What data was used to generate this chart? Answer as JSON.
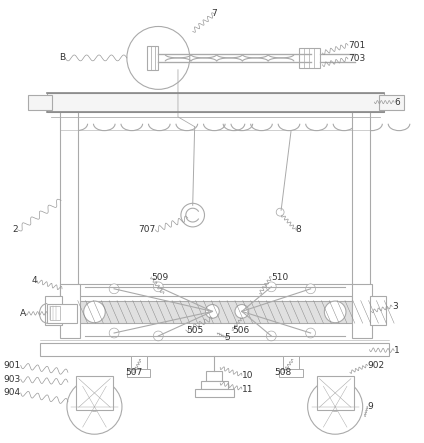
{
  "bg_color": "#ffffff",
  "lc": "#aaaaaa",
  "lc2": "#888888",
  "lw": 0.8,
  "fig_width": 4.24,
  "fig_height": 4.43,
  "dpi": 100
}
